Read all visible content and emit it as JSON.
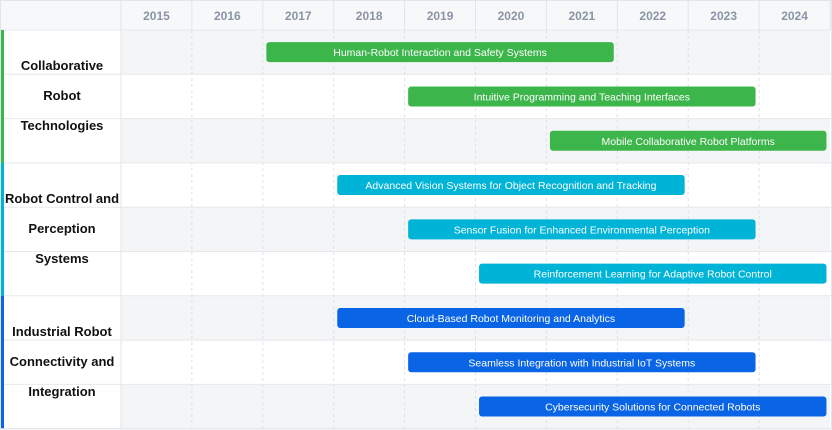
{
  "chart_data": {
    "type": "gantt",
    "x_axis": {
      "ticks": [
        "2015",
        "2016",
        "2017",
        "2018",
        "2019",
        "2020",
        "2021",
        "2022",
        "2023",
        "2024"
      ],
      "range": [
        2015,
        2025
      ]
    },
    "groups": [
      {
        "label": "Collaborative Robot Technologies",
        "color": "#3cb54a",
        "rows": [
          {
            "label": "Human-Robot Interaction and Safety Systems",
            "start": 2017.05,
            "end": 2021.95
          },
          {
            "label": "Intuitive Programming and Teaching Interfaces",
            "start": 2019.05,
            "end": 2023.95
          },
          {
            "label": "Mobile Collaborative Robot Platforms",
            "start": 2021.05,
            "end": 2024.95
          }
        ]
      },
      {
        "label": "Robot Control and Perception Systems",
        "color": "#00b4d8",
        "rows": [
          {
            "label": "Advanced Vision Systems for Object Recognition and Tracking",
            "start": 2018.05,
            "end": 2022.95
          },
          {
            "label": "Sensor Fusion for Enhanced Environmental Perception",
            "start": 2019.05,
            "end": 2023.95
          },
          {
            "label": "Reinforcement Learning for Adaptive Robot Control",
            "start": 2020.05,
            "end": 2024.95
          }
        ]
      },
      {
        "label": "Industrial Robot Connectivity and Integration",
        "color": "#0a64e6",
        "rows": [
          {
            "label": "Cloud-Based Robot Monitoring and Analytics",
            "start": 2018.05,
            "end": 2022.95
          },
          {
            "label": "Seamless Integration with Industrial IoT Systems",
            "start": 2019.05,
            "end": 2023.95
          },
          {
            "label": "Cybersecurity Solutions for Connected Robots",
            "start": 2020.05,
            "end": 2024.95
          }
        ]
      }
    ]
  }
}
